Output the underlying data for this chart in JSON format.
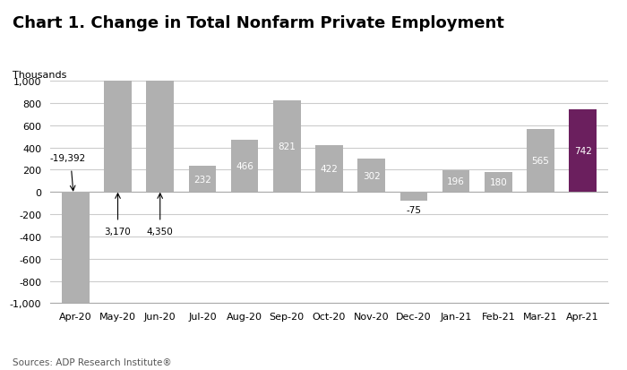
{
  "title": "Chart 1. Change in Total Nonfarm Private Employment",
  "ylabel": "Thousands",
  "source": "Sources: ADP Research Institute®",
  "categories": [
    "Apr-20",
    "May-20",
    "Jun-20",
    "Jul-20",
    "Aug-20",
    "Sep-20",
    "Oct-20",
    "Nov-20",
    "Dec-20",
    "Jan-21",
    "Feb-21",
    "Mar-21",
    "Apr-21"
  ],
  "values": [
    -19392,
    3170,
    4350,
    232,
    466,
    821,
    422,
    302,
    -75,
    196,
    180,
    565,
    742
  ],
  "bar_colors": [
    "#b0b0b0",
    "#b0b0b0",
    "#b0b0b0",
    "#b0b0b0",
    "#b0b0b0",
    "#b0b0b0",
    "#b0b0b0",
    "#b0b0b0",
    "#b0b0b0",
    "#b0b0b0",
    "#b0b0b0",
    "#b0b0b0",
    "#6b1f5e"
  ],
  "bar_labels": [
    "-19,392",
    "3,170",
    "4,350",
    "232",
    "466",
    "821",
    "422",
    "302",
    "-75",
    "196",
    "180",
    "565",
    "742"
  ],
  "ylim": [
    -1000,
    1000
  ],
  "yticks": [
    -1000,
    -800,
    -600,
    -400,
    -200,
    0,
    200,
    400,
    600,
    800,
    1000
  ],
  "ytick_labels": [
    "-1,000",
    "-800",
    "-600",
    "-400",
    "-200",
    "0",
    "200",
    "400",
    "600",
    "800",
    "1,000"
  ],
  "background_color": "#ffffff",
  "grid_color": "#cccccc",
  "title_fontsize": 13,
  "label_fontsize": 7.5,
  "axis_fontsize": 8
}
